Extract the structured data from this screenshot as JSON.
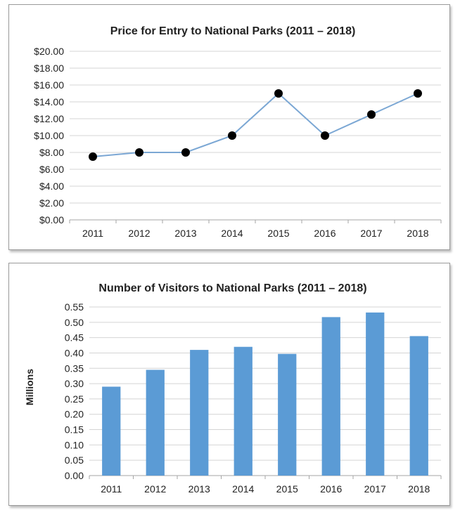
{
  "colors": {
    "line": "#7ba7d4",
    "marker": "#000000",
    "bar": "#5b9bd5",
    "grid": "#d4d4d4",
    "axis": "#a6a6a6"
  },
  "chart_data": [
    {
      "type": "line",
      "title": "Price for Entry to National Parks (2011 – 2018)",
      "categories": [
        "2011",
        "2012",
        "2013",
        "2014",
        "2015",
        "2016",
        "2017",
        "2018"
      ],
      "values": [
        7.5,
        8.0,
        8.0,
        10.0,
        15.0,
        10.0,
        12.5,
        15.0
      ],
      "ylim": [
        0,
        20
      ],
      "ytick_values": [
        0,
        2,
        4,
        6,
        8,
        10,
        12,
        14,
        16,
        18,
        20
      ],
      "ytick_labels": [
        "$0.00",
        "$2.00",
        "$4.00",
        "$6.00",
        "$8.00",
        "$10.00",
        "$12.00",
        "$14.00",
        "$16.00",
        "$18.00",
        "$20.00"
      ],
      "xlabel": "",
      "ylabel": "",
      "grid": true
    },
    {
      "type": "bar",
      "title": "Number of Visitors to National Parks (2011 – 2018)",
      "categories": [
        "2011",
        "2012",
        "2013",
        "2014",
        "2015",
        "2016",
        "2017",
        "2018"
      ],
      "values": [
        0.29,
        0.345,
        0.41,
        0.42,
        0.397,
        0.517,
        0.532,
        0.455
      ],
      "ylim": [
        0,
        0.55
      ],
      "ytick_values": [
        0,
        0.05,
        0.1,
        0.15,
        0.2,
        0.25,
        0.3,
        0.35,
        0.4,
        0.45,
        0.5,
        0.55
      ],
      "ytick_labels": [
        "0.00",
        "0.05",
        "0.10",
        "0.15",
        "0.20",
        "0.25",
        "0.30",
        "0.35",
        "0.40",
        "0.45",
        "0.50",
        "0.55"
      ],
      "xlabel": "",
      "ylabel": "Millions",
      "grid": true
    }
  ]
}
